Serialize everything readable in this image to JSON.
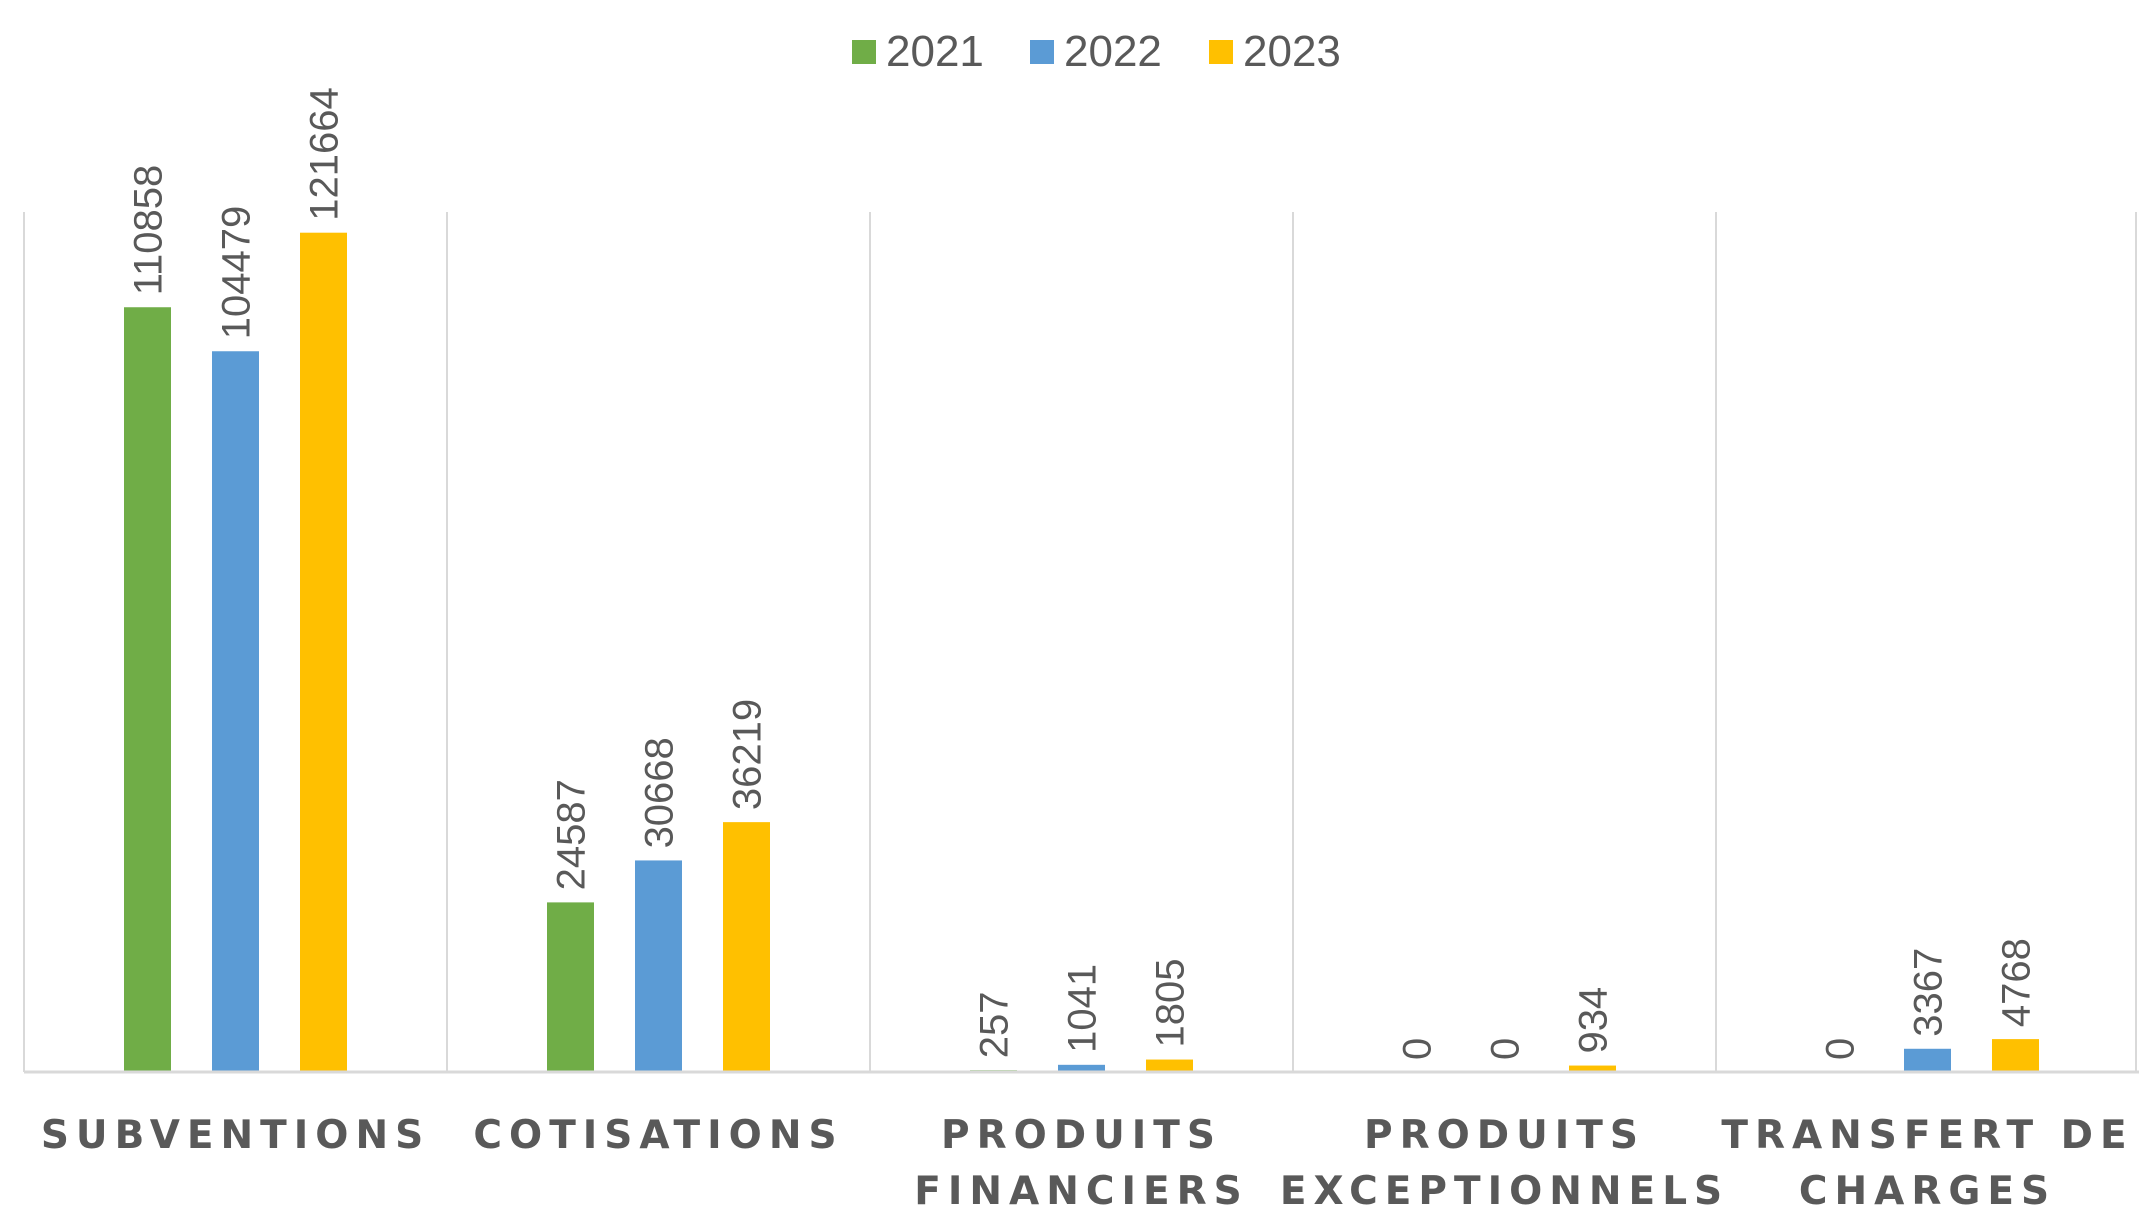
{
  "chart_data": {
    "type": "bar",
    "title": "",
    "xlabel": "",
    "ylabel": "",
    "categories": [
      [
        "SUBVENTIONS"
      ],
      [
        "COTISATIONS"
      ],
      [
        "PRODUITS",
        "FINANCIERS"
      ],
      [
        "PRODUITS",
        "EXCEPTIONNELS"
      ],
      [
        "TRANSFERT DE",
        "CHARGES"
      ]
    ],
    "series": [
      {
        "name": "2021",
        "color": "#70AD47",
        "values": [
          110858,
          24587,
          257,
          0,
          0
        ]
      },
      {
        "name": "2022",
        "color": "#5B9BD5",
        "values": [
          104479,
          30668,
          1041,
          0,
          3367
        ]
      },
      {
        "name": "2023",
        "color": "#FFC000",
        "values": [
          121664,
          36219,
          1805,
          934,
          4768
        ]
      }
    ],
    "ylim": [
      0,
      138000
    ],
    "legend_position": "top-center",
    "grid": false,
    "category_separators": true,
    "data_labels": "rotated-vertical"
  }
}
